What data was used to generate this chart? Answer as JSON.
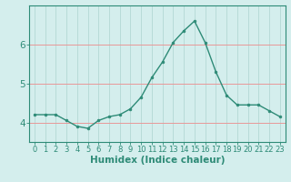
{
  "x": [
    0,
    1,
    2,
    3,
    4,
    5,
    6,
    7,
    8,
    9,
    10,
    11,
    12,
    13,
    14,
    15,
    16,
    17,
    18,
    19,
    20,
    21,
    22,
    23
  ],
  "y": [
    4.2,
    4.2,
    4.2,
    4.05,
    3.9,
    3.85,
    4.05,
    4.15,
    4.2,
    4.35,
    4.65,
    5.15,
    5.55,
    6.05,
    6.35,
    6.6,
    6.05,
    5.3,
    4.7,
    4.45,
    4.45,
    4.45,
    4.3,
    4.15
  ],
  "line_color": "#2e8b77",
  "marker": "o",
  "marker_size": 2.0,
  "bg_color": "#d4eeed",
  "axis_color": "#2e8b77",
  "xlabel": "Humidex (Indice chaleur)",
  "xlabel_fontsize": 7.5,
  "tick_fontsize": 6.0,
  "ytick_fontsize": 7.5,
  "ylim": [
    3.5,
    7.0
  ],
  "yticks": [
    4,
    5,
    6
  ],
  "xticks": [
    0,
    1,
    2,
    3,
    4,
    5,
    6,
    7,
    8,
    9,
    10,
    11,
    12,
    13,
    14,
    15,
    16,
    17,
    18,
    19,
    20,
    21,
    22,
    23
  ],
  "grid_h_color": "#e89898",
  "grid_v_color": "#b8dbd8"
}
